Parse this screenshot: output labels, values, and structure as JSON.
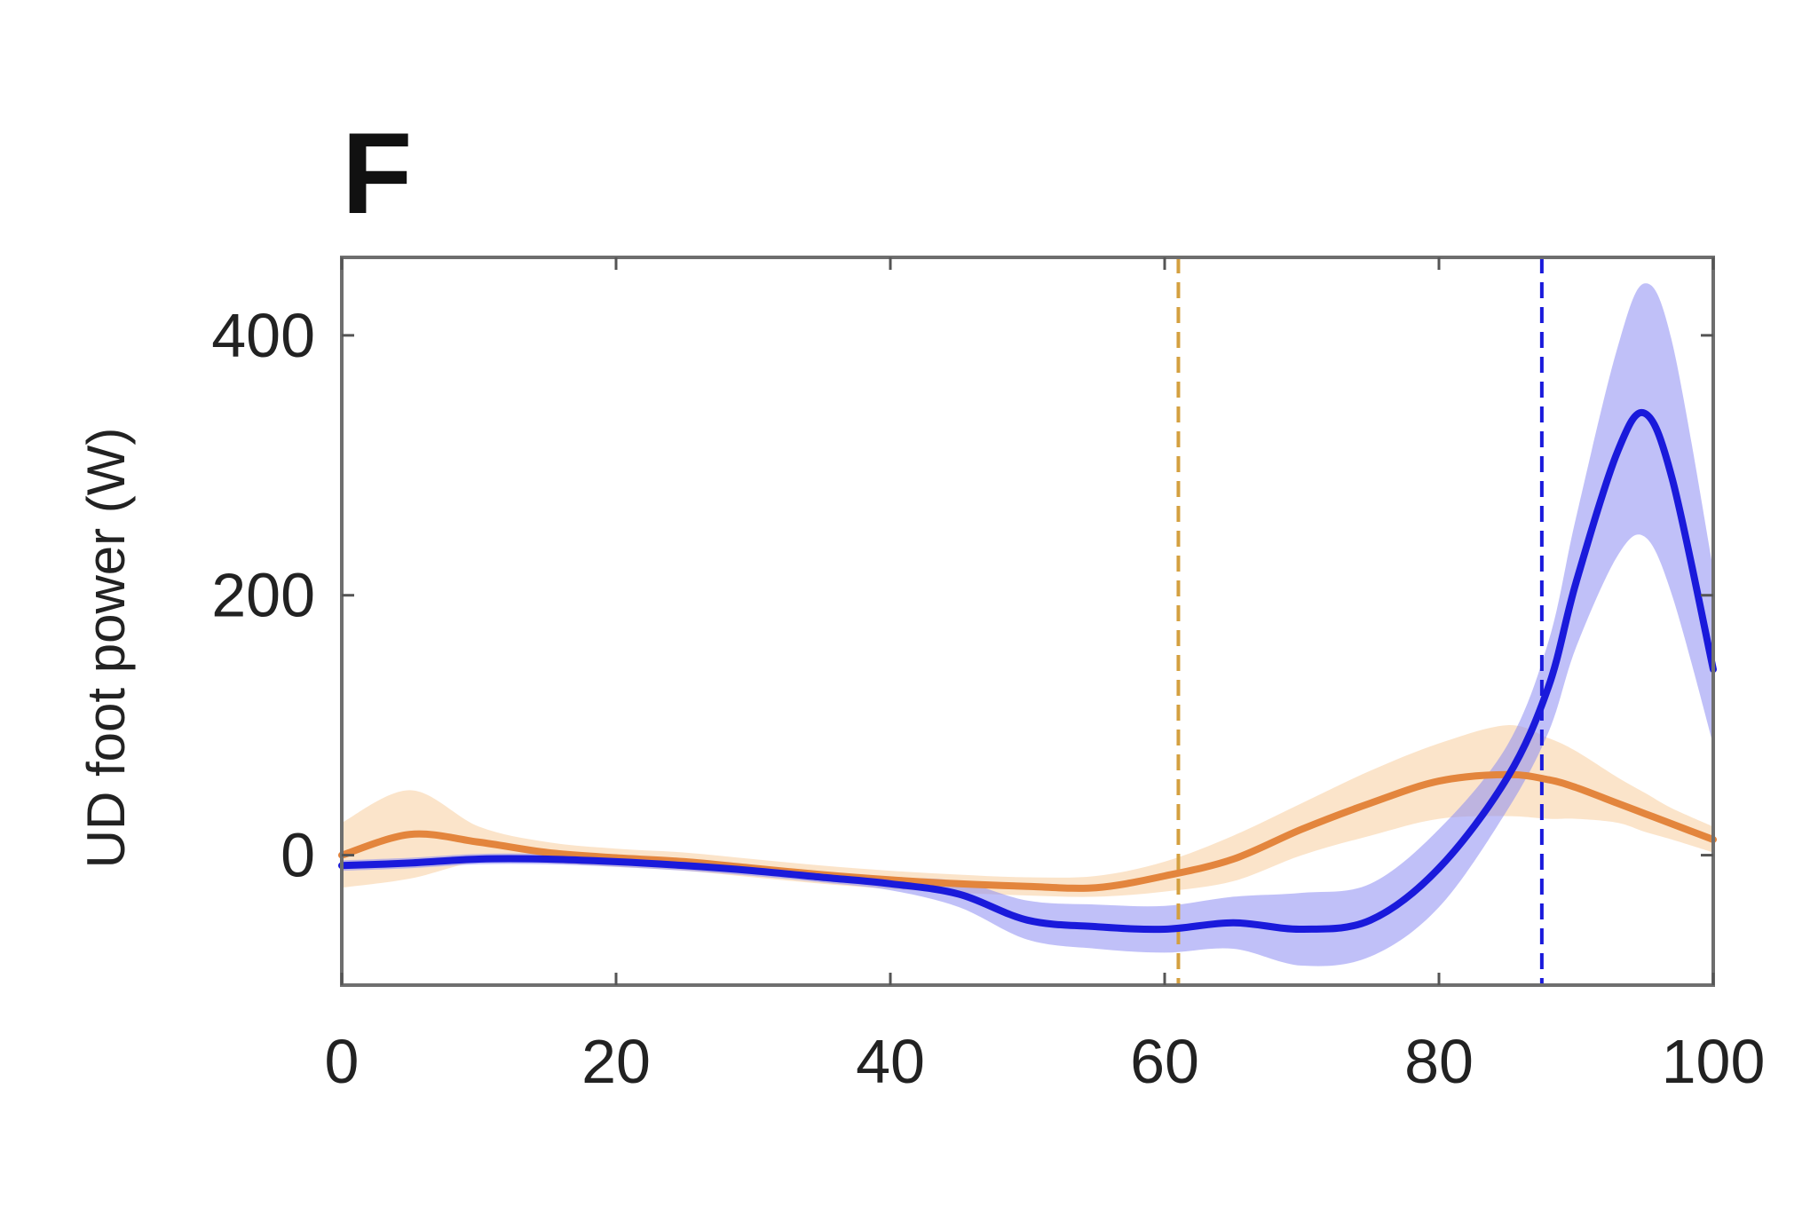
{
  "chart_data": {
    "type": "line",
    "panel_label": "F",
    "title": "",
    "xlabel": "",
    "ylabel": "UD foot power (W)",
    "xlim": [
      0,
      100
    ],
    "ylim": [
      -100,
      460
    ],
    "x_ticks": [
      0,
      20,
      40,
      60,
      80,
      100
    ],
    "x_tick_labels": [
      "0",
      "20",
      "40",
      "60",
      "80",
      "100"
    ],
    "y_ticks": [
      0,
      200,
      400
    ],
    "y_tick_labels": [
      "0",
      "200",
      "400"
    ],
    "grid": false,
    "legend": "none",
    "x": [
      0,
      5,
      10,
      15,
      20,
      25,
      30,
      35,
      40,
      45,
      50,
      55,
      60,
      65,
      70,
      75,
      80,
      85,
      88,
      90,
      93,
      95,
      97,
      100
    ],
    "series": [
      {
        "color": "#1a1adb",
        "band_color": "#8c8cf2",
        "values": [
          -8,
          -6,
          -3,
          -3,
          -5,
          -8,
          -12,
          -17,
          -22,
          -30,
          -50,
          -55,
          -57,
          -52,
          -57,
          -50,
          -10,
          60,
          130,
          210,
          310,
          340,
          290,
          143
        ],
        "band_low": [
          -12,
          -10,
          -7,
          -7,
          -9,
          -12,
          -16,
          -21,
          -27,
          -40,
          -65,
          -72,
          -75,
          -72,
          -85,
          -78,
          -40,
          35,
          95,
          160,
          230,
          245,
          200,
          85
        ],
        "band_high": [
          -4,
          -2,
          1,
          1,
          -1,
          -4,
          -8,
          -13,
          -17,
          -20,
          -35,
          -38,
          -39,
          -32,
          -29,
          -22,
          20,
          85,
          165,
          260,
          390,
          440,
          395,
          220
        ]
      },
      {
        "color": "#e3853d",
        "band_color": "#f9d8b4",
        "values": [
          0,
          16,
          10,
          2,
          -2,
          -5,
          -10,
          -15,
          -19,
          -22,
          -24,
          -25,
          -16,
          -3,
          20,
          40,
          57,
          62,
          58,
          52,
          40,
          32,
          24,
          12
        ],
        "band_low": [
          -25,
          -18,
          -5,
          -6,
          -9,
          -12,
          -17,
          -22,
          -26,
          -29,
          -31,
          -32,
          -28,
          -20,
          0,
          15,
          28,
          30,
          28,
          28,
          25,
          18,
          12,
          2
        ],
        "band_high": [
          25,
          50,
          22,
          10,
          5,
          2,
          -3,
          -8,
          -12,
          -15,
          -17,
          -16,
          -5,
          15,
          40,
          65,
          86,
          100,
          90,
          80,
          60,
          48,
          36,
          22
        ]
      }
    ],
    "vertical_lines": [
      {
        "x": 61,
        "color": "#d4a040",
        "style": "dashed"
      },
      {
        "x": 87.5,
        "color": "#1a1adb",
        "style": "dashed"
      }
    ]
  }
}
